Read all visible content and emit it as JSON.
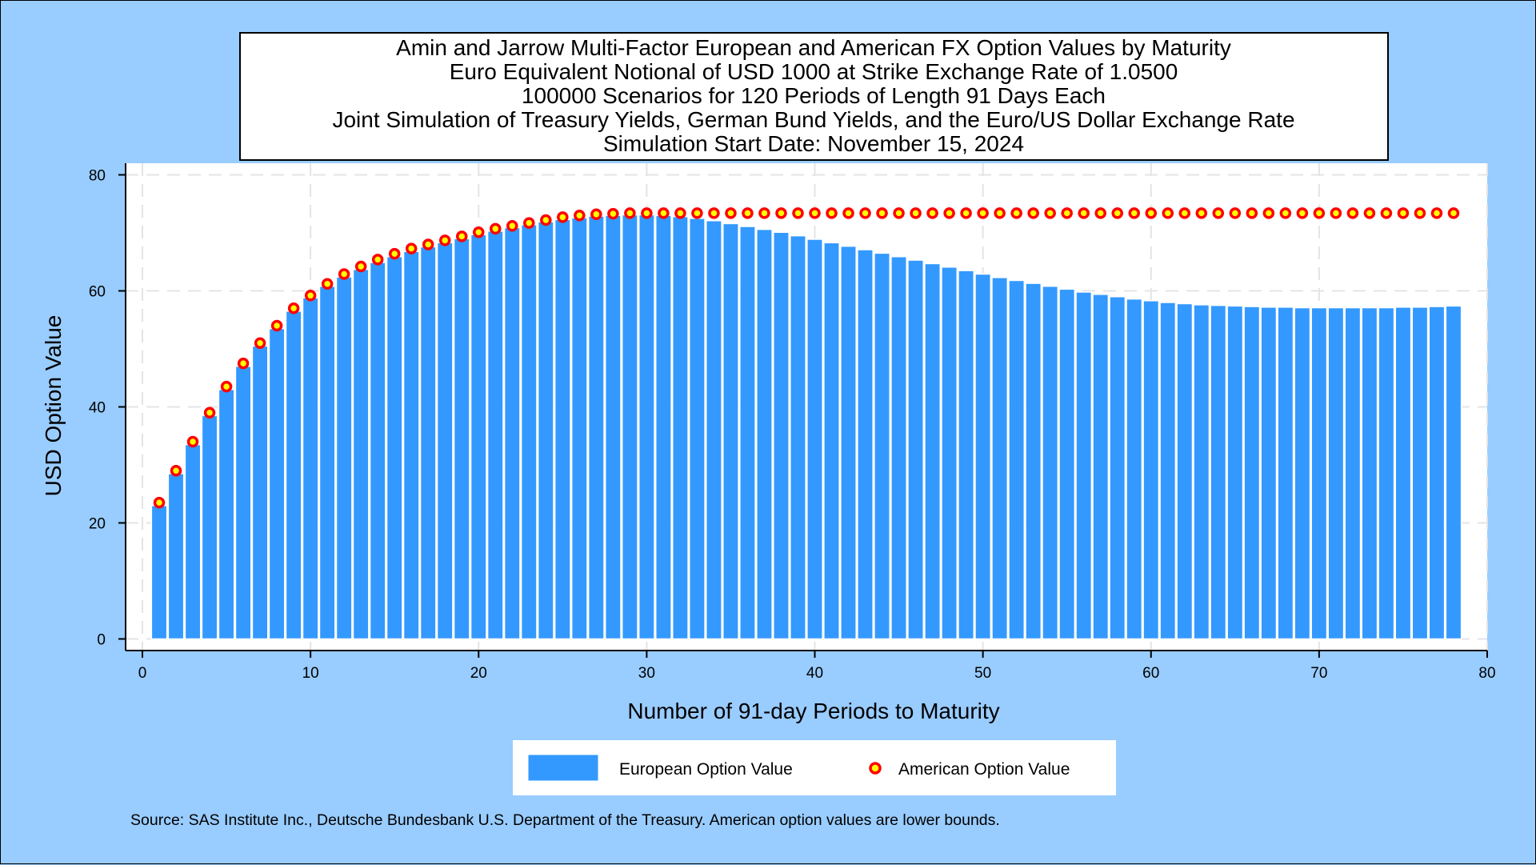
{
  "chart_data": {
    "type": "bar",
    "title_lines": [
      "Amin and Jarrow Multi-Factor European and American FX Option Values by Maturity",
      "Euro Equivalent Notional of USD 1000 at Strike Exchange Rate of  1.0500",
      "100000 Scenarios for 120 Periods of Length 91 Days Each",
      "Joint Simulation of Treasury Yields, German Bund Yields, and the Euro/US Dollar Exchange Rate",
      "Simulation Start Date: November 15, 2024"
    ],
    "xlabel": "Number of 91-day Periods to Maturity",
    "ylabel": "USD Option Value",
    "xlim": [
      -1,
      80
    ],
    "ylim": [
      -2,
      82
    ],
    "xticks": [
      0,
      10,
      20,
      30,
      40,
      50,
      60,
      70,
      80
    ],
    "yticks": [
      0,
      20,
      40,
      60,
      80
    ],
    "grid": true,
    "legend_position": "bottom",
    "colors": {
      "european_bar": "#3399ff",
      "american_fill": "#ffff00",
      "american_edge": "#ff0000",
      "plot_background": "#ffffff",
      "page_background": "#99ccff"
    },
    "x": [
      1,
      2,
      3,
      4,
      5,
      6,
      7,
      8,
      9,
      10,
      11,
      12,
      13,
      14,
      15,
      16,
      17,
      18,
      19,
      20,
      21,
      22,
      23,
      24,
      25,
      26,
      27,
      28,
      29,
      30,
      31,
      32,
      33,
      34,
      35,
      36,
      37,
      38,
      39,
      40,
      41,
      42,
      43,
      44,
      45,
      46,
      47,
      48,
      49,
      50,
      51,
      52,
      53,
      54,
      55,
      56,
      57,
      58,
      59,
      60,
      61,
      62,
      63,
      64,
      65,
      66,
      67,
      68,
      69,
      70,
      71,
      72,
      73,
      74,
      75,
      76,
      77,
      78
    ],
    "series": [
      {
        "name": "European Option Value",
        "style": "bar",
        "values": [
          23.0,
          28.5,
          33.5,
          38.5,
          43.0,
          47.0,
          50.5,
          53.5,
          56.5,
          58.8,
          60.8,
          62.4,
          63.7,
          64.9,
          65.9,
          66.8,
          67.6,
          68.3,
          69.0,
          69.7,
          70.3,
          70.9,
          71.4,
          71.9,
          72.3,
          72.6,
          72.9,
          73.0,
          73.1,
          73.1,
          73.0,
          72.8,
          72.5,
          72.1,
          71.6,
          71.1,
          70.6,
          70.1,
          69.5,
          68.9,
          68.3,
          67.7,
          67.1,
          66.5,
          65.9,
          65.3,
          64.7,
          64.1,
          63.5,
          62.9,
          62.3,
          61.8,
          61.3,
          60.8,
          60.3,
          59.8,
          59.4,
          59.0,
          58.6,
          58.3,
          58.0,
          57.8,
          57.6,
          57.5,
          57.4,
          57.3,
          57.2,
          57.2,
          57.1,
          57.1,
          57.1,
          57.1,
          57.1,
          57.1,
          57.2,
          57.2,
          57.3,
          57.4
        ]
      },
      {
        "name": "American Option Value",
        "style": "marker",
        "values": [
          23.5,
          29.0,
          34.0,
          39.0,
          43.5,
          47.5,
          51.0,
          54.0,
          57.0,
          59.2,
          61.2,
          62.9,
          64.2,
          65.4,
          66.4,
          67.3,
          68.0,
          68.7,
          69.4,
          70.1,
          70.7,
          71.2,
          71.7,
          72.2,
          72.7,
          73.0,
          73.2,
          73.3,
          73.4,
          73.4,
          73.4,
          73.4,
          73.4,
          73.4,
          73.4,
          73.4,
          73.4,
          73.4,
          73.4,
          73.4,
          73.4,
          73.4,
          73.4,
          73.4,
          73.4,
          73.4,
          73.4,
          73.4,
          73.4,
          73.4,
          73.4,
          73.4,
          73.4,
          73.4,
          73.4,
          73.4,
          73.4,
          73.4,
          73.4,
          73.4,
          73.4,
          73.4,
          73.4,
          73.4,
          73.4,
          73.4,
          73.4,
          73.4,
          73.4,
          73.4,
          73.4,
          73.4,
          73.4,
          73.4,
          73.4,
          73.4,
          73.4,
          73.4
        ]
      }
    ]
  },
  "footnote": "Source: SAS Institute Inc., Deutsche Bundesbank U.S. Department of the Treasury. American option values are lower bounds."
}
